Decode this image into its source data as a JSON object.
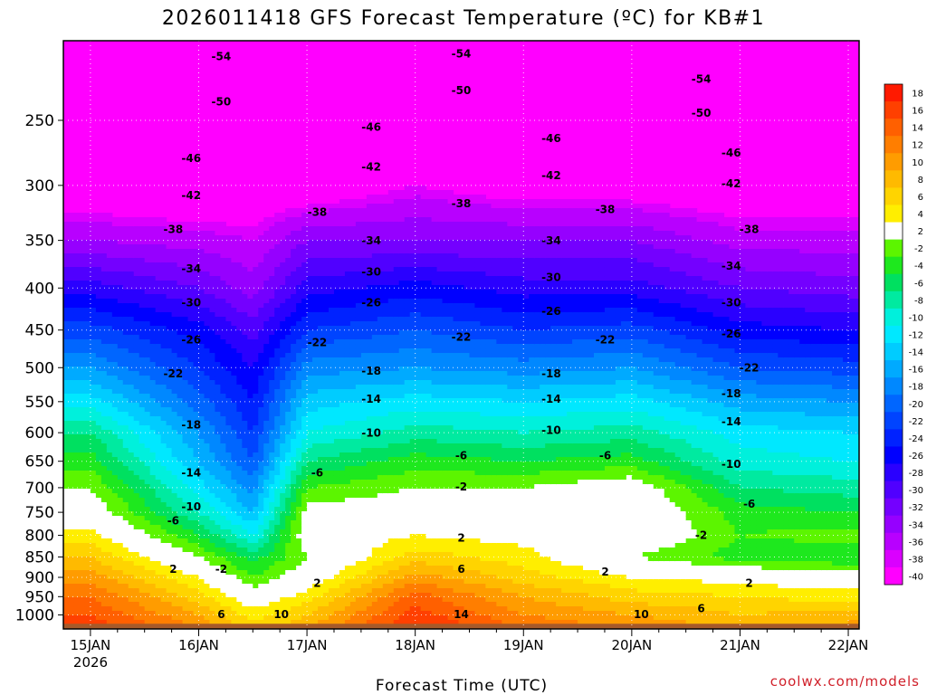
{
  "chart_data": {
    "type": "heatmap",
    "title": "2026011418 GFS Forecast Temperature (ºC) for KB#1",
    "xlabel": "Forecast Time (UTC)",
    "credit": "coolwx.com/models",
    "x_ticks": [
      "15JAN",
      "16JAN",
      "17JAN",
      "18JAN",
      "19JAN",
      "20JAN",
      "21JAN",
      "22JAN"
    ],
    "x_year": "2026",
    "x_range_days": [
      14.75,
      22.1
    ],
    "y_ticks": [
      250,
      300,
      350,
      400,
      450,
      500,
      550,
      600,
      650,
      700,
      750,
      800,
      850,
      900,
      950,
      1000
    ],
    "y_unit": "hPa",
    "y_range": [
      200,
      1040
    ],
    "y_scale": "log",
    "grid": true,
    "colorbar": {
      "ticks": [
        18,
        16,
        14,
        12,
        10,
        8,
        6,
        4,
        2,
        -2,
        -4,
        -6,
        -8,
        -10,
        -12,
        -14,
        -16,
        -18,
        -20,
        -22,
        -24,
        -26,
        -28,
        -30,
        -32,
        -34,
        -36,
        -38,
        -40
      ],
      "colors": [
        "#ff1a00",
        "#ff4000",
        "#ff6000",
        "#ff7e00",
        "#ff9c00",
        "#ffba00",
        "#ffd400",
        "#ffee00",
        "#ffffff",
        "#5cf500",
        "#1ee81e",
        "#00e060",
        "#00eaa0",
        "#00f0dc",
        "#00e8ff",
        "#00ccff",
        "#00aaff",
        "#0088ff",
        "#0066ff",
        "#0044ff",
        "#0022ff",
        "#0000ff",
        "#2a00ff",
        "#5000ff",
        "#7400ff",
        "#9600ff",
        "#b800ff",
        "#da00ff",
        "#ff00ff"
      ]
    },
    "temperature_profiles": [
      {
        "time": "15JAN 00Z",
        "levels": [
          1000,
          950,
          900,
          850,
          800,
          750,
          700,
          650,
          600,
          550,
          500,
          450,
          400,
          350,
          300,
          250
        ],
        "values": [
          14,
          12,
          9,
          6,
          3,
          0,
          -2,
          -5,
          -8,
          -13,
          -18,
          -23,
          -29,
          -36,
          -42,
          -50
        ]
      },
      {
        "time": "16JAN 00Z",
        "levels": [
          1000,
          950,
          900,
          850,
          800,
          750,
          700,
          650,
          600,
          550,
          500,
          450,
          400,
          350,
          300,
          250
        ],
        "values": [
          8,
          5,
          2,
          -2,
          -6,
          -10,
          -13,
          -16,
          -18,
          -21,
          -24,
          -27,
          -32,
          -37,
          -43,
          -50
        ]
      },
      {
        "time": "16JAN 12Z",
        "levels": [
          1000,
          950,
          900,
          850,
          800,
          750,
          700,
          650,
          600,
          550,
          500,
          450,
          400,
          350,
          300,
          250
        ],
        "values": [
          3,
          0,
          -4,
          -7,
          -12,
          -16,
          -19,
          -22,
          -24,
          -26,
          -28,
          -31,
          -35,
          -38,
          -42,
          -46
        ]
      },
      {
        "time": "17JAN 00Z",
        "levels": [
          1000,
          950,
          900,
          850,
          800,
          750,
          700,
          650,
          600,
          550,
          500,
          450,
          400,
          350,
          300,
          250
        ],
        "values": [
          6,
          3,
          0,
          -2,
          0,
          -1,
          -4,
          -8,
          -12,
          -15,
          -19,
          -24,
          -29,
          -34,
          -42,
          -48
        ]
      },
      {
        "time": "18JAN 00Z",
        "levels": [
          1000,
          950,
          900,
          850,
          800,
          750,
          700,
          650,
          600,
          550,
          500,
          450,
          400,
          350,
          300,
          250
        ],
        "values": [
          15,
          13,
          9,
          5,
          2,
          0,
          -2,
          -5,
          -9,
          -13,
          -18,
          -22,
          -27,
          -34,
          -39,
          -46
        ]
      },
      {
        "time": "19JAN 00Z",
        "levels": [
          1000,
          950,
          900,
          850,
          800,
          750,
          700,
          650,
          600,
          550,
          500,
          450,
          400,
          350,
          300,
          250
        ],
        "values": [
          10,
          8,
          5,
          3,
          1,
          1,
          -2,
          -6,
          -10,
          -14,
          -19,
          -24,
          -29,
          -34,
          -41,
          -48
        ]
      },
      {
        "time": "20JAN 00Z",
        "levels": [
          1000,
          950,
          900,
          850,
          800,
          750,
          700,
          650,
          600,
          550,
          500,
          450,
          400,
          350,
          300,
          250
        ],
        "values": [
          8,
          5,
          2,
          -2,
          1,
          1,
          0,
          -5,
          -9,
          -13,
          -18,
          -23,
          -29,
          -34,
          -41,
          -48
        ]
      },
      {
        "time": "21JAN 00Z",
        "levels": [
          1000,
          950,
          900,
          850,
          800,
          750,
          700,
          650,
          600,
          550,
          500,
          450,
          400,
          350,
          300,
          250
        ],
        "values": [
          6,
          4,
          1,
          -5,
          -4,
          -5,
          -8,
          -11,
          -13,
          -17,
          -22,
          -27,
          -32,
          -37,
          -42,
          -50
        ]
      },
      {
        "time": "22JAN 00Z",
        "levels": [
          1000,
          950,
          900,
          850,
          800,
          750,
          700,
          650,
          600,
          550,
          500,
          450,
          400,
          350,
          300,
          250
        ],
        "values": [
          7,
          3,
          0,
          -6,
          -3,
          -6,
          -9,
          -12,
          -14,
          -18,
          -23,
          -28,
          -33,
          -37,
          -42,
          -50
        ]
      }
    ],
    "contour_labels": [
      "-54",
      "-54",
      "-54",
      "-50",
      "-50",
      "-50",
      "-46",
      "-46",
      "-46",
      "-46",
      "-42",
      "-42",
      "-42",
      "-42",
      "-38",
      "-38",
      "-38",
      "-38",
      "-38",
      "-34",
      "-34",
      "-34",
      "-34",
      "-30",
      "-30",
      "-30",
      "-30",
      "-26",
      "-26",
      "-26",
      "-26",
      "-22",
      "-22",
      "-22",
      "-22",
      "-22",
      "-18",
      "-18",
      "-18",
      "-18",
      "-14",
      "-14",
      "-14",
      "-14",
      "-10",
      "-10",
      "-10",
      "-10",
      "-6",
      "-6",
      "-6",
      "-6",
      "-6",
      "-2",
      "-2",
      "-2",
      "2",
      "2",
      "2",
      "2",
      "2",
      "6",
      "6",
      "6",
      "10",
      "10",
      "14"
    ]
  }
}
